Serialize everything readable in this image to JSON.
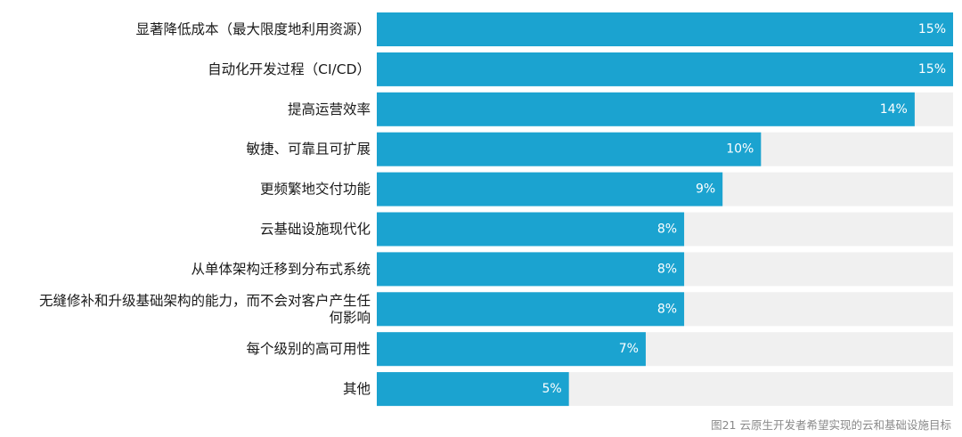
{
  "chart_data": {
    "type": "bar",
    "orientation": "horizontal",
    "categories": [
      [
        "显著降低成本（最大限度地利用资源）"
      ],
      [
        "自动化开发过程（CI/CD）"
      ],
      [
        "提高运营效率"
      ],
      [
        "敏捷、可靠且可扩展"
      ],
      [
        "更频繁地交付功能"
      ],
      [
        "云基础设施现代化"
      ],
      [
        "从单体架构迁移到分布式系统"
      ],
      [
        "无缝修补和升级基础架构的能力，而不会对客户产生任",
        "何影响"
      ],
      [
        "每个级别的高可用性"
      ],
      [
        "其他"
      ]
    ],
    "values": [
      15,
      15,
      14,
      10,
      9,
      8,
      8,
      8,
      7,
      5
    ],
    "value_labels": [
      "15%",
      "15%",
      "14%",
      "10%",
      "9%",
      "8%",
      "8%",
      "8%",
      "7%",
      "5%"
    ],
    "xlim": [
      0,
      15
    ],
    "unit": "%",
    "grid": false,
    "legend": "none",
    "colors": {
      "bar": "#1ba3d0",
      "track": "#f0f0f0",
      "label": "#1a1a1a",
      "value_label": "#ffffff"
    }
  },
  "caption": "图21  云原生开发者希望实现的云和基础设施目标"
}
